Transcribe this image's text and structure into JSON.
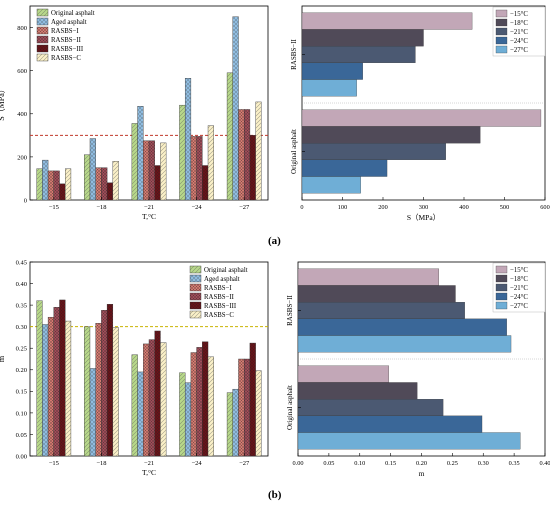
{
  "captions": {
    "a": "(a)",
    "b": "(b)"
  },
  "chart_data": [
    {
      "id": "a_left",
      "type": "bar",
      "title": "",
      "xlabel": "T,°C",
      "ylabel": "S（MPa）",
      "categories": [
        "−15",
        "−18",
        "−21",
        "−24",
        "−27"
      ],
      "ylim": [
        0,
        900
      ],
      "yticks": [
        "0",
        "200",
        "400",
        "600",
        "800"
      ],
      "ref_line": 300,
      "ref_color": "#c0392b",
      "legend_position": "top-left",
      "series": [
        {
          "name": "Original asphalt",
          "values": [
            145,
            210,
            355,
            440,
            590
          ],
          "color": "#b8d98a",
          "pattern": "diag"
        },
        {
          "name": "Aged asphalt",
          "values": [
            185,
            285,
            435,
            565,
            850
          ],
          "color": "#8fbce0",
          "pattern": "cross"
        },
        {
          "name": "RASBS−I",
          "values": [
            135,
            150,
            275,
            295,
            420
          ],
          "color": "#d47a70",
          "pattern": "grid"
        },
        {
          "name": "RASBS−II",
          "values": [
            135,
            150,
            275,
            295,
            420
          ],
          "color": "#a04c58",
          "pattern": "grid"
        },
        {
          "name": "RASBS−III",
          "values": [
            75,
            80,
            160,
            160,
            300
          ],
          "color": "#6a1218",
          "pattern": "grid"
        },
        {
          "name": "RASBS−C",
          "values": [
            145,
            180,
            265,
            345,
            455
          ],
          "color": "#fbf1c8",
          "pattern": "diag"
        }
      ]
    },
    {
      "id": "a_right",
      "type": "bar",
      "orientation": "horizontal",
      "title": "",
      "xlabel": "S（MPa）",
      "ylabel": "",
      "categories": [
        "RASBS−II",
        "Original asphalt"
      ],
      "xlim": [
        0,
        600
      ],
      "xticks": [
        "0",
        "100",
        "200",
        "300",
        "400",
        "500",
        "600"
      ],
      "legend_position": "top-right",
      "series": [
        {
          "name": "−15°C",
          "values": [
            420,
            590
          ],
          "color": "#c2a7b7"
        },
        {
          "name": "−18°C",
          "values": [
            300,
            440
          ],
          "color": "#504a58"
        },
        {
          "name": "−21°C",
          "values": [
            280,
            355
          ],
          "color": "#4b5972"
        },
        {
          "name": "−24°C",
          "values": [
            150,
            210
          ],
          "color": "#3a6798"
        },
        {
          "name": "−27°C",
          "values": [
            135,
            145
          ],
          "color": "#6faed6"
        }
      ]
    },
    {
      "id": "b_left",
      "type": "bar",
      "title": "",
      "xlabel": "T,°C",
      "ylabel": "m",
      "categories": [
        "−15",
        "−18",
        "−21",
        "−24",
        "−27"
      ],
      "ylim": [
        0,
        0.45
      ],
      "yticks": [
        "0.00",
        "0.05",
        "0.10",
        "0.15",
        "0.20",
        "0.25",
        "0.30",
        "0.35",
        "0.40",
        "0.45"
      ],
      "ref_line": 0.3,
      "ref_color": "#c9b400",
      "legend_position": "top-right",
      "series": [
        {
          "name": "Original asphalt",
          "values": [
            0.36,
            0.3,
            0.235,
            0.193,
            0.147
          ],
          "color": "#b8d98a",
          "pattern": "diag"
        },
        {
          "name": "Aged asphalt",
          "values": [
            0.305,
            0.203,
            0.195,
            0.17,
            0.155
          ],
          "color": "#8fbce0",
          "pattern": "cross"
        },
        {
          "name": "RASBS−I",
          "values": [
            0.322,
            0.308,
            0.26,
            0.24,
            0.225
          ],
          "color": "#d47a70",
          "pattern": "grid"
        },
        {
          "name": "RASBS−II",
          "values": [
            0.345,
            0.338,
            0.27,
            0.252,
            0.225
          ],
          "color": "#a04c58",
          "pattern": "grid"
        },
        {
          "name": "RASBS−III",
          "values": [
            0.362,
            0.352,
            0.29,
            0.265,
            0.262
          ],
          "color": "#6a1218",
          "pattern": "grid"
        },
        {
          "name": "RASBS−C",
          "values": [
            0.313,
            0.298,
            0.263,
            0.23,
            0.198
          ],
          "color": "#fbf1c8",
          "pattern": "diag"
        }
      ]
    },
    {
      "id": "b_right",
      "type": "bar",
      "orientation": "horizontal",
      "title": "",
      "xlabel": "m",
      "ylabel": "",
      "categories": [
        "RASBS−II",
        "Original asphalt"
      ],
      "xlim": [
        0,
        0.4
      ],
      "xticks": [
        "0.00",
        "0.05",
        "0.10",
        "0.15",
        "0.20",
        "0.25",
        "0.30",
        "0.35",
        "0.40"
      ],
      "legend_position": "top-right",
      "series": [
        {
          "name": "−15°C",
          "values": [
            0.228,
            0.147
          ],
          "color": "#c2a7b7"
        },
        {
          "name": "−18°C",
          "values": [
            0.255,
            0.193
          ],
          "color": "#504a58"
        },
        {
          "name": "−21°C",
          "values": [
            0.27,
            0.235
          ],
          "color": "#4b5972"
        },
        {
          "name": "−24°C",
          "values": [
            0.338,
            0.298
          ],
          "color": "#3a6798"
        },
        {
          "name": "−27°C",
          "values": [
            0.345,
            0.36
          ],
          "color": "#6faed6"
        }
      ]
    }
  ]
}
